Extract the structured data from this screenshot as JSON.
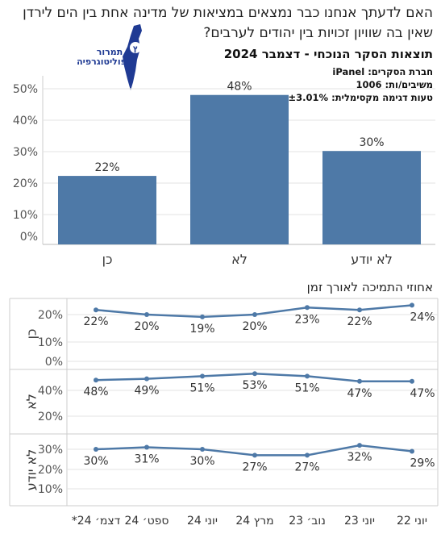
{
  "header": {
    "question": "האם לדעתך אנחנו כבר נמצאים במציאות של מדינה אחת בין הים לירדן שאין בה שוויון זכויות בין יהודים לערבים?",
    "subtitle": "תוצאות הסקר הנוכחי - דצמבר 2024",
    "meta_company": "חברת הסקרים: iPanel",
    "meta_respondents": "משיבים/ות: 1006",
    "meta_error": "טעות דגימה מקסימלית: ±3.01%"
  },
  "logo": {
    "line1": "תמרור",
    "line2": "פוליטוגרפיה"
  },
  "trend_title": "אחוזי התמיכה לאורך זמן",
  "colors": {
    "bar": "#4e79a7",
    "line": "#4e79a7",
    "grid": "#e3e3e3",
    "axis": "#555555"
  },
  "chart_data": [
    {
      "type": "bar",
      "categories": [
        "כן",
        "לא",
        "לא יודע"
      ],
      "values": [
        22,
        48,
        30
      ],
      "value_labels": [
        "22%",
        "48%",
        "30%"
      ],
      "y_ticks": [
        "0%",
        "10%",
        "20%",
        "30%",
        "40%",
        "50%"
      ],
      "ylim": [
        0,
        50
      ],
      "grid": true
    },
    {
      "type": "line",
      "x": [
        "יוני 22",
        "יוני 23",
        "נוב׳ 23",
        "מרץ 24",
        "יוני 24",
        "ספט׳ 24",
        "דצמ׳ 24*"
      ],
      "series": [
        {
          "name": "כן",
          "values": [
            24,
            22,
            23,
            20,
            19,
            20,
            22
          ],
          "labels": [
            "24%",
            "22%",
            "23%",
            "20%",
            "19%",
            "20%",
            "22%"
          ],
          "ticks": [
            "0%",
            "10%",
            "20%"
          ],
          "ylim": [
            0,
            26
          ]
        },
        {
          "name": "לא",
          "values": [
            47,
            47,
            51,
            53,
            51,
            49,
            48
          ],
          "labels": [
            "47%",
            "47%",
            "51%",
            "53%",
            "51%",
            "49%",
            "48%"
          ],
          "ticks": [
            "20%",
            "40%"
          ],
          "ylim": [
            10,
            56
          ]
        },
        {
          "name": "לא יודע",
          "values": [
            29,
            32,
            27,
            27,
            30,
            31,
            30
          ],
          "labels": [
            "29%",
            "32%",
            "27%",
            "27%",
            "30%",
            "31%",
            "30%"
          ],
          "ticks": [
            "10%",
            "20%",
            "30%"
          ],
          "ylim": [
            0,
            32
          ]
        }
      ],
      "grid": true
    }
  ]
}
